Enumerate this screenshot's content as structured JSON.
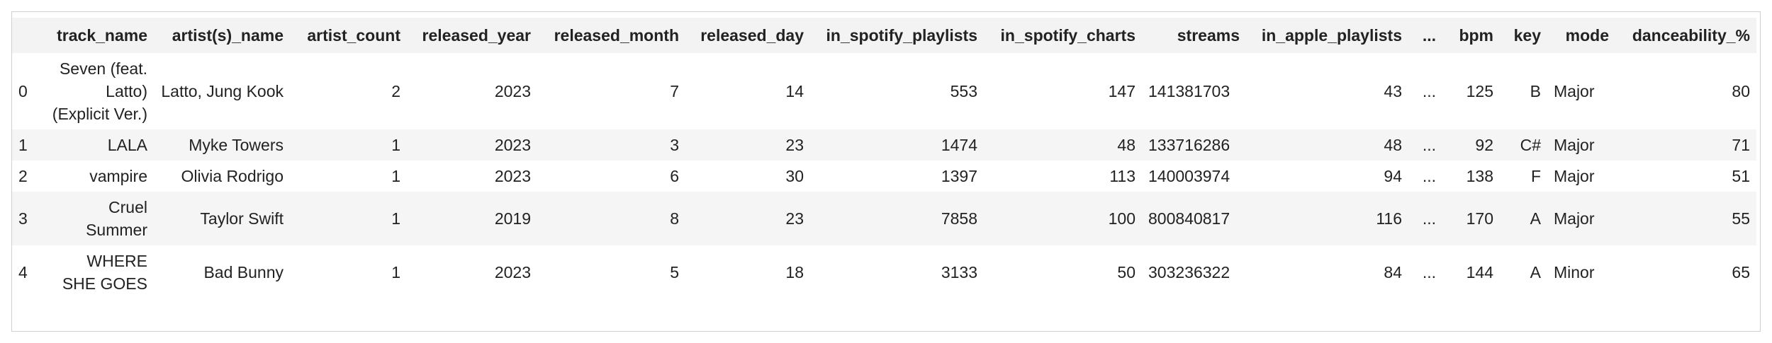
{
  "table": {
    "columns": [
      "track_name",
      "artist(s)_name",
      "artist_count",
      "released_year",
      "released_month",
      "released_day",
      "in_spotify_playlists",
      "in_spotify_charts",
      "streams",
      "in_apple_playlists",
      "...",
      "bpm",
      "key",
      "mode",
      "danceability_%"
    ],
    "rows": [
      {
        "index": 0,
        "cells": [
          "Seven (feat. Latto) (Explicit Ver.)",
          "Latto, Jung Kook",
          2,
          2023,
          7,
          14,
          553,
          147,
          141381703,
          43,
          "...",
          125,
          "B",
          "Major",
          80
        ]
      },
      {
        "index": 1,
        "cells": [
          "LALA",
          "Myke Towers",
          1,
          2023,
          3,
          23,
          1474,
          48,
          133716286,
          48,
          "...",
          92,
          "C#",
          "Major",
          71
        ]
      },
      {
        "index": 2,
        "cells": [
          "vampire",
          "Olivia Rodrigo",
          1,
          2023,
          6,
          30,
          1397,
          113,
          140003974,
          94,
          "...",
          138,
          "F",
          "Major",
          51
        ]
      },
      {
        "index": 3,
        "cells": [
          "Cruel Summer",
          "Taylor Swift",
          1,
          2019,
          8,
          23,
          7858,
          100,
          800840817,
          116,
          "...",
          170,
          "A",
          "Major",
          55
        ]
      },
      {
        "index": 4,
        "cells": [
          "WHERE SHE GOES",
          "Bad Bunny",
          1,
          2023,
          5,
          18,
          3133,
          50,
          303236322,
          84,
          "...",
          144,
          "A",
          "Minor",
          65
        ]
      }
    ]
  }
}
